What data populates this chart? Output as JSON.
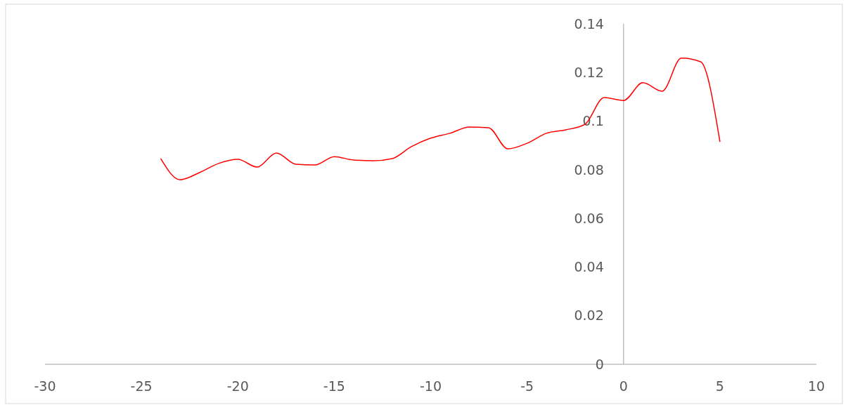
{
  "chart_data": {
    "type": "line",
    "x": [
      -24,
      -23,
      -22,
      -21,
      -20,
      -19,
      -18,
      -17,
      -16,
      -15,
      -14,
      -13,
      -12,
      -11,
      -10,
      -9,
      -8,
      -7,
      -6,
      -5,
      -4,
      -3,
      -2,
      -1,
      0,
      1,
      2,
      3,
      4,
      5
    ],
    "series": [
      {
        "color": "#ff0000",
        "values": [
          0.0846,
          0.0759,
          0.0788,
          0.0826,
          0.0843,
          0.0811,
          0.0869,
          0.0823,
          0.082,
          0.0854,
          0.084,
          0.0837,
          0.0846,
          0.0895,
          0.093,
          0.095,
          0.0976,
          0.0973,
          0.0886,
          0.0909,
          0.095,
          0.0964,
          0.0987,
          0.1097,
          0.1085,
          0.1158,
          0.1123,
          0.1259,
          0.1244,
          0.0915
        ]
      }
    ],
    "xlim": [
      -30,
      10
    ],
    "xticks": [
      -30,
      -25,
      -20,
      -15,
      -10,
      -5,
      0,
      5,
      10
    ],
    "ylim": [
      0,
      0.14
    ],
    "yticks": [
      0,
      0.02,
      0.04,
      0.06,
      0.08,
      0.1,
      0.12,
      0.14
    ],
    "marker": "none",
    "line_style": "solid"
  }
}
